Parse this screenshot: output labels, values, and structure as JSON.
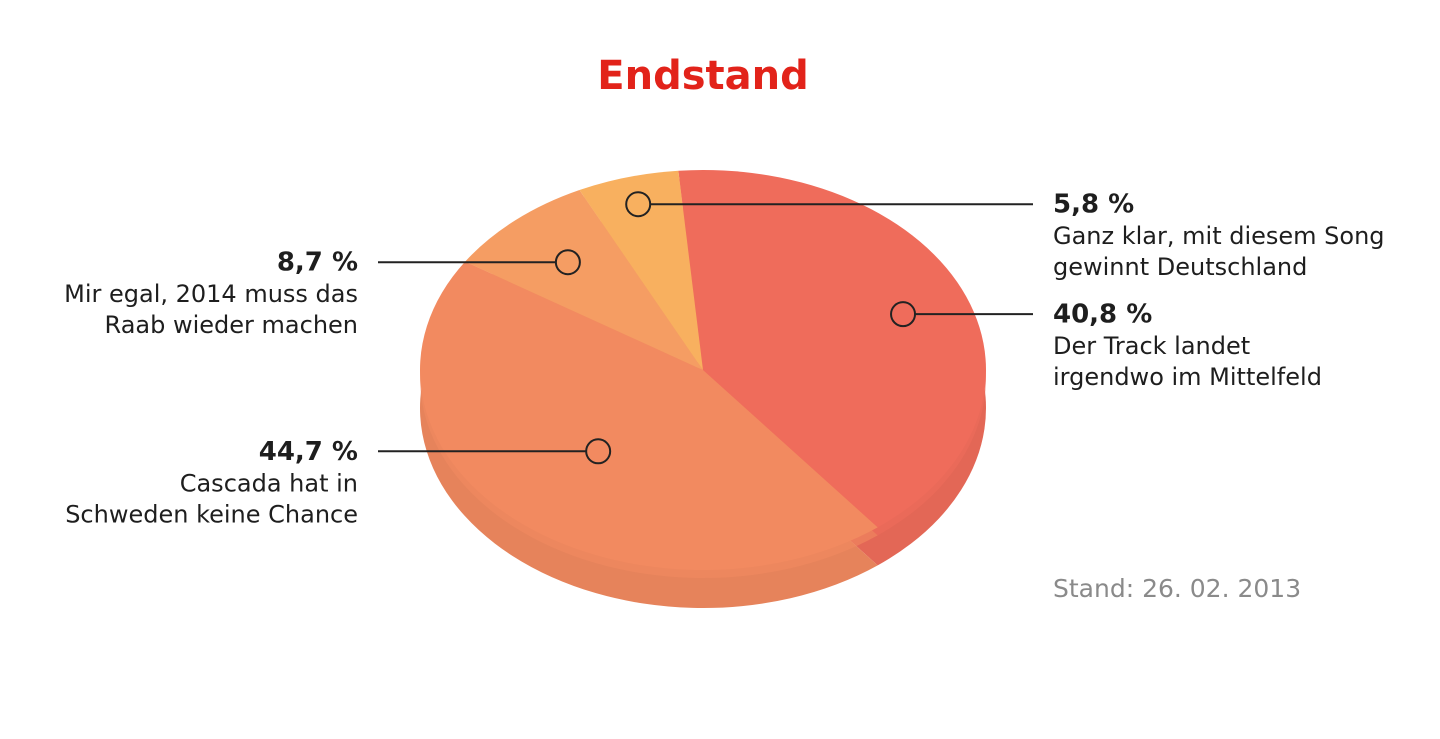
{
  "chart_data": {
    "type": "pie",
    "title": "Endstand",
    "categories": [
      [
        "Der Track landet",
        "irgendwo im Mittelfeld"
      ],
      [
        "Cascada hat in",
        "Schweden keine Chance"
      ],
      [
        "Mir egal, 2014 muss das",
        "Raab wieder machen"
      ],
      [
        "Ganz klar, mit diesem Song",
        "gewinnt Deutschland"
      ]
    ],
    "values": [
      40.8,
      44.7,
      8.7,
      5.8
    ],
    "value_labels": [
      "40,8 %",
      "44,7 %",
      "8,7 %",
      "5,8 %"
    ],
    "colors": [
      "#ef6c5b",
      "#f28a60",
      "#f59d63",
      "#f8b05f"
    ],
    "note": "Stand: 26. 02. 2013"
  }
}
